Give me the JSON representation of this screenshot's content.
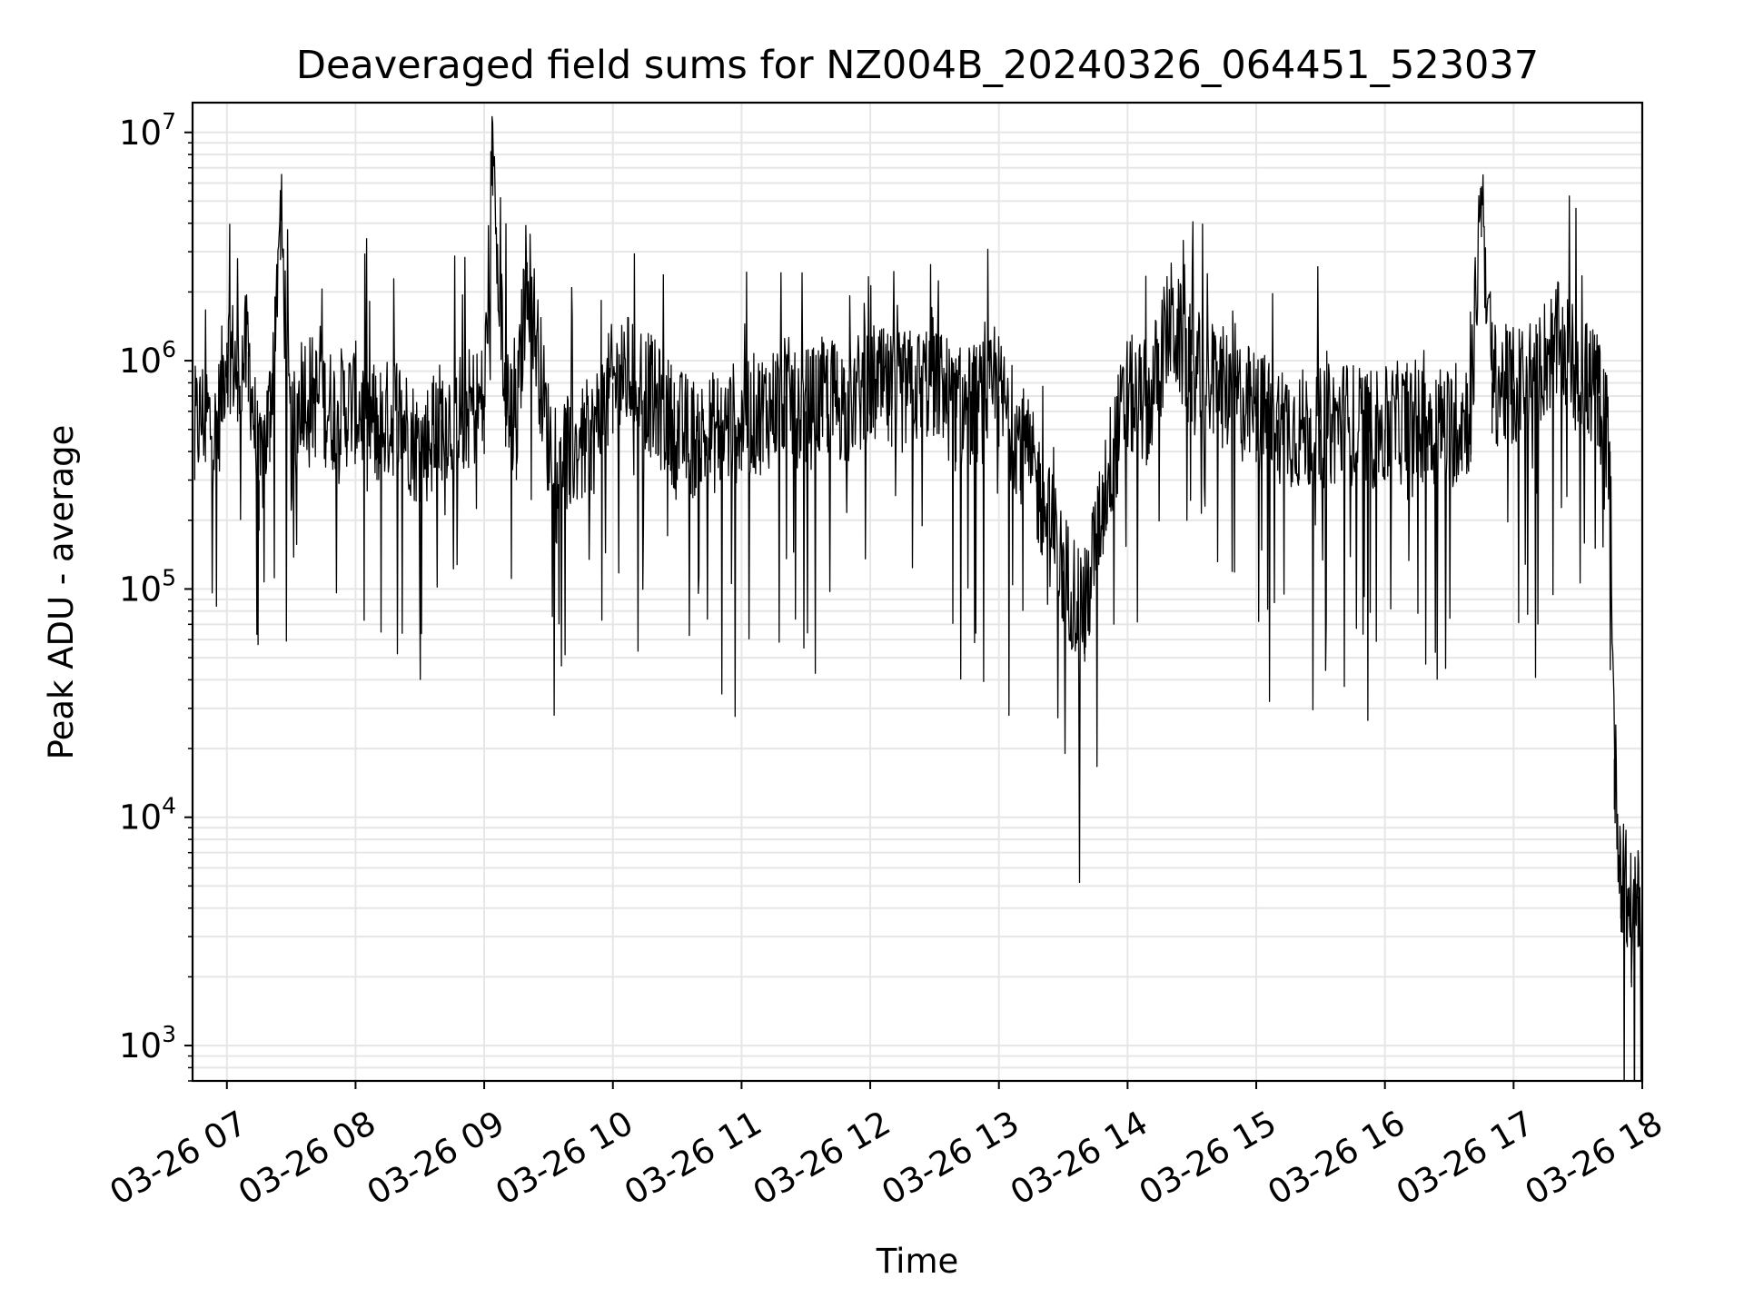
{
  "chart_data": {
    "type": "line",
    "title": "Deaveraged field sums for NZ004B_20240326_064451_523037",
    "xlabel": "Time",
    "ylabel": "Peak ADU - average",
    "yscale": "log",
    "grid": true,
    "line_color": "#000000",
    "grid_color": "#e6e6e6",
    "xlim": [
      "2024-03-26 06:44",
      "2024-03-26 18:00"
    ],
    "ylim": [
      700,
      13500000
    ],
    "x_ticks": [
      "03-26 07",
      "03-26 08",
      "03-26 09",
      "03-26 10",
      "03-26 11",
      "03-26 12",
      "03-26 13",
      "03-26 14",
      "03-26 15",
      "03-26 16",
      "03-26 17",
      "03-26 18"
    ],
    "y_ticks": [
      {
        "base": "10",
        "exp": "3",
        "value": 1000
      },
      {
        "base": "10",
        "exp": "4",
        "value": 10000
      },
      {
        "base": "10",
        "exp": "5",
        "value": 100000
      },
      {
        "base": "10",
        "exp": "6",
        "value": 1000000
      },
      {
        "base": "10",
        "exp": "7",
        "value": 10000000
      }
    ],
    "series": [
      {
        "x": [
          "2024-03-26 06:45",
          "2024-03-26 06:50",
          "2024-03-26 06:55",
          "2024-03-26 07:00",
          "2024-03-26 07:05",
          "2024-03-26 07:10",
          "2024-03-26 07:15",
          "2024-03-26 07:20",
          "2024-03-26 07:25",
          "2024-03-26 07:30",
          "2024-03-26 07:35",
          "2024-03-26 07:40",
          "2024-03-26 07:50",
          "2024-03-26 08:00",
          "2024-03-26 08:10",
          "2024-03-26 08:20",
          "2024-03-26 08:30",
          "2024-03-26 08:40",
          "2024-03-26 08:50",
          "2024-03-26 09:00",
          "2024-03-26 09:04",
          "2024-03-26 09:10",
          "2024-03-26 09:15",
          "2024-03-26 09:20",
          "2024-03-26 09:30",
          "2024-03-26 09:40",
          "2024-03-26 09:50",
          "2024-03-26 10:00",
          "2024-03-26 10:10",
          "2024-03-26 10:20",
          "2024-03-26 10:30",
          "2024-03-26 10:40",
          "2024-03-26 10:50",
          "2024-03-26 11:00",
          "2024-03-26 11:10",
          "2024-03-26 11:20",
          "2024-03-26 11:30",
          "2024-03-26 11:40",
          "2024-03-26 11:50",
          "2024-03-26 12:00",
          "2024-03-26 12:10",
          "2024-03-26 12:20",
          "2024-03-26 12:30",
          "2024-03-26 12:40",
          "2024-03-26 12:50",
          "2024-03-26 13:00",
          "2024-03-26 13:10",
          "2024-03-26 13:20",
          "2024-03-26 13:30",
          "2024-03-26 13:40",
          "2024-03-26 13:50",
          "2024-03-26 14:00",
          "2024-03-26 14:10",
          "2024-03-26 14:20",
          "2024-03-26 14:30",
          "2024-03-26 14:40",
          "2024-03-26 14:50",
          "2024-03-26 15:00",
          "2024-03-26 15:10",
          "2024-03-26 15:20",
          "2024-03-26 15:30",
          "2024-03-26 15:40",
          "2024-03-26 15:50",
          "2024-03-26 16:00",
          "2024-03-26 16:10",
          "2024-03-26 16:20",
          "2024-03-26 16:30",
          "2024-03-26 16:40",
          "2024-03-26 16:45",
          "2024-03-26 16:50",
          "2024-03-26 17:00",
          "2024-03-26 17:10",
          "2024-03-26 17:20",
          "2024-03-26 17:30",
          "2024-03-26 17:35",
          "2024-03-26 17:40",
          "2024-03-26 17:45",
          "2024-03-26 17:47",
          "2024-03-26 17:50",
          "2024-03-26 17:53",
          "2024-03-26 17:55",
          "2024-03-26 17:58",
          "2024-03-26 18:00"
        ],
        "y": [
          500000,
          600000,
          450000,
          1200000,
          900000,
          1100000,
          300000,
          600000,
          4600000,
          400000,
          800000,
          700000,
          600000,
          650000,
          500000,
          600000,
          400000,
          550000,
          600000,
          650000,
          8800000,
          700000,
          500000,
          2700000,
          450000,
          400000,
          450000,
          800000,
          900000,
          650000,
          500000,
          450000,
          500000,
          550000,
          600000,
          700000,
          600000,
          700000,
          650000,
          800000,
          700000,
          750000,
          850000,
          600000,
          650000,
          700000,
          450000,
          250000,
          120000,
          80000,
          300000,
          700000,
          650000,
          1500000,
          900000,
          800000,
          700000,
          600000,
          550000,
          500000,
          500000,
          550000,
          500000,
          500000,
          550000,
          550000,
          500000,
          600000,
          5800000,
          800000,
          750000,
          900000,
          1200000,
          900000,
          800000,
          700000,
          400000,
          18000,
          6000,
          4500,
          3000,
          4500,
          3500
        ]
      }
    ]
  }
}
